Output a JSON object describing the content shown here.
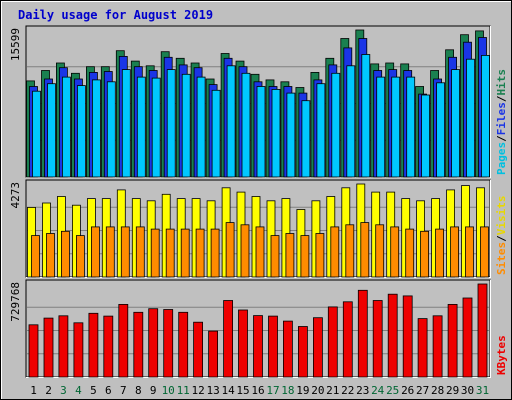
{
  "chart_data": {
    "type": "bar",
    "title": "Daily usage for August 2019",
    "categories": [
      "1",
      "2",
      "3",
      "4",
      "5",
      "6",
      "7",
      "8",
      "9",
      "10",
      "11",
      "12",
      "13",
      "14",
      "15",
      "16",
      "17",
      "18",
      "19",
      "20",
      "21",
      "22",
      "23",
      "24",
      "25",
      "26",
      "27",
      "28",
      "29",
      "30",
      "31"
    ],
    "weekend_days": [
      "3",
      "4",
      "10",
      "11",
      "17",
      "18",
      "24",
      "25",
      "31"
    ],
    "colors": {
      "title": "#0000cc",
      "background": "#bfbfbf",
      "weekday_label": "#000000",
      "weekend_label": "#006633",
      "hits": "#1a8050",
      "files": "#1a35e6",
      "pages": "#00c8ff",
      "visits": "#ffff00",
      "sites": "#ff8c00",
      "kbytes": "#ee0000"
    },
    "panels": [
      {
        "id": "top",
        "max_label": "15599",
        "ymax": 15599,
        "legend": [
          {
            "text": "Pages",
            "color": "#00c0e0"
          },
          {
            "text": "/",
            "color": "#000000"
          },
          {
            "text": "Files",
            "color": "#1a35e6"
          },
          {
            "text": "/",
            "color": "#000000"
          },
          {
            "text": "Hits",
            "color": "#1a8050"
          }
        ],
        "series": [
          {
            "name": "Hits",
            "color": "#1a8050",
            "values": [
              10200,
              11300,
              12100,
              11000,
              11700,
              11700,
              13400,
              12300,
              11800,
              13300,
              12600,
              12100,
              10400,
              13100,
              12300,
              10900,
              10300,
              10100,
              9500,
              11100,
              12600,
              14700,
              15599,
              12000,
              12100,
              12000,
              9600,
              11300,
              13500,
              15100,
              15500
            ]
          },
          {
            "name": "Files",
            "color": "#1a35e6",
            "values": [
              9600,
              10400,
              11600,
              10400,
              11100,
              11200,
              12800,
              11700,
              11300,
              12700,
              11900,
              11600,
              9800,
              12600,
              11700,
              10100,
              9600,
              9600,
              8900,
              10300,
              11900,
              13700,
              14700,
              11300,
              11400,
              11300,
              8800,
              10400,
              12700,
              14300,
              14800
            ]
          },
          {
            "name": "Pages",
            "color": "#00c8ff",
            "values": [
              9100,
              9900,
              10600,
              9700,
              10300,
              10100,
              11400,
              10600,
              10500,
              11400,
              10900,
              10600,
              9200,
              11800,
              11000,
              9600,
              9300,
              8900,
              8100,
              9900,
              11000,
              11800,
              13000,
              10600,
              10600,
              10600,
              8700,
              10000,
              11400,
              12500,
              12900
            ]
          }
        ]
      },
      {
        "id": "middle",
        "max_label": "4273",
        "ymax": 4273,
        "legend": [
          {
            "text": "Sites",
            "color": "#ff8c00"
          },
          {
            "text": "/",
            "color": "#000000"
          },
          {
            "text": "Visits",
            "color": "#e8d800"
          }
        ],
        "series": [
          {
            "name": "Visits",
            "color": "#ffff00",
            "values": [
              3200,
              3400,
              3700,
              3300,
              3600,
              3600,
              4000,
              3600,
              3500,
              3800,
              3600,
              3600,
              3500,
              4100,
              3900,
              3700,
              3500,
              3600,
              3100,
              3500,
              3700,
              4100,
              4273,
              3900,
              3900,
              3600,
              3500,
              3600,
              4000,
              4200,
              4100
            ]
          },
          {
            "name": "Sites",
            "color": "#ff8c00",
            "values": [
              1900,
              2000,
              2100,
              1900,
              2300,
              2300,
              2300,
              2300,
              2200,
              2200,
              2200,
              2200,
              2200,
              2500,
              2400,
              2300,
              1900,
              2000,
              1900,
              2000,
              2300,
              2400,
              2500,
              2400,
              2300,
              2200,
              2100,
              2200,
              2300,
              2300,
              2300
            ]
          }
        ]
      },
      {
        "id": "bottom",
        "max_label": "729768",
        "ymax": 729768,
        "legend": [
          {
            "text": "KBytes",
            "color": "#ee0000"
          }
        ],
        "series": [
          {
            "name": "KBytes",
            "color": "#ee0000",
            "values": [
              410000,
              462000,
              480000,
              425000,
              500000,
              478000,
              570000,
              508000,
              536000,
              530000,
              508000,
              430000,
              360000,
              600000,
              526000,
              482000,
              478000,
              439000,
              396000,
              465000,
              550000,
              590000,
              680000,
              600000,
              650000,
              636000,
              458000,
              480000,
              570000,
              620000,
              729768
            ]
          }
        ]
      }
    ]
  }
}
